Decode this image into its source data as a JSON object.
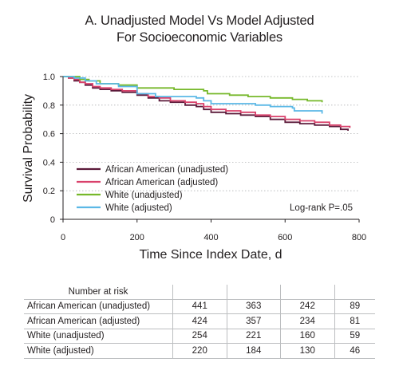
{
  "chart_data": {
    "type": "line",
    "title_line1": "A. Unadjusted Model Vs Model Adjusted",
    "title_line2": "For Socioeconomic Variables",
    "xlabel": "Time Since Index Date, d",
    "ylabel": "Survival Probability",
    "xlim": [
      0,
      800
    ],
    "ylim": [
      0,
      1.0
    ],
    "xticks": [
      "0",
      "200",
      "400",
      "600",
      "800"
    ],
    "yticks": [
      "0",
      "0.2",
      "0.4",
      "0.6",
      "0.8",
      "1.0"
    ],
    "grid": "horizontal dotted",
    "legend_position": "lower-left",
    "annotation": "Log-rank P=.05",
    "series": [
      {
        "name": "African American (unadjusted)",
        "color": "#5b1a3a",
        "points": [
          [
            0,
            1.0
          ],
          [
            15,
            0.99
          ],
          [
            30,
            0.97
          ],
          [
            45,
            0.96
          ],
          [
            60,
            0.94
          ],
          [
            80,
            0.92
          ],
          [
            100,
            0.91
          ],
          [
            130,
            0.9
          ],
          [
            160,
            0.89
          ],
          [
            200,
            0.87
          ],
          [
            230,
            0.85
          ],
          [
            260,
            0.83
          ],
          [
            290,
            0.82
          ],
          [
            330,
            0.8
          ],
          [
            360,
            0.79
          ],
          [
            380,
            0.77
          ],
          [
            400,
            0.75
          ],
          [
            440,
            0.74
          ],
          [
            480,
            0.73
          ],
          [
            520,
            0.72
          ],
          [
            560,
            0.7
          ],
          [
            600,
            0.68
          ],
          [
            640,
            0.67
          ],
          [
            680,
            0.66
          ],
          [
            720,
            0.65
          ],
          [
            750,
            0.63
          ],
          [
            770,
            0.62
          ]
        ]
      },
      {
        "name": "African American (adjusted)",
        "color": "#d9416b",
        "points": [
          [
            0,
            1.0
          ],
          [
            15,
            0.99
          ],
          [
            30,
            0.98
          ],
          [
            45,
            0.96
          ],
          [
            60,
            0.95
          ],
          [
            80,
            0.93
          ],
          [
            100,
            0.92
          ],
          [
            130,
            0.91
          ],
          [
            160,
            0.9
          ],
          [
            200,
            0.88
          ],
          [
            230,
            0.86
          ],
          [
            260,
            0.85
          ],
          [
            290,
            0.83
          ],
          [
            330,
            0.82
          ],
          [
            360,
            0.81
          ],
          [
            380,
            0.79
          ],
          [
            400,
            0.77
          ],
          [
            440,
            0.76
          ],
          [
            480,
            0.75
          ],
          [
            520,
            0.73
          ],
          [
            560,
            0.72
          ],
          [
            600,
            0.7
          ],
          [
            640,
            0.69
          ],
          [
            680,
            0.68
          ],
          [
            720,
            0.66
          ],
          [
            750,
            0.65
          ],
          [
            775,
            0.64
          ]
        ]
      },
      {
        "name": "White (unadjusted)",
        "color": "#76b82a",
        "points": [
          [
            0,
            1.0
          ],
          [
            30,
            1.0
          ],
          [
            45,
            0.98
          ],
          [
            70,
            0.97
          ],
          [
            100,
            0.95
          ],
          [
            150,
            0.94
          ],
          [
            200,
            0.92
          ],
          [
            300,
            0.91
          ],
          [
            380,
            0.9
          ],
          [
            390,
            0.88
          ],
          [
            450,
            0.87
          ],
          [
            500,
            0.86
          ],
          [
            560,
            0.85
          ],
          [
            620,
            0.84
          ],
          [
            660,
            0.83
          ],
          [
            700,
            0.82
          ]
        ]
      },
      {
        "name": "White (adjusted)",
        "color": "#5bb8e6",
        "points": [
          [
            0,
            1.0
          ],
          [
            30,
            0.99
          ],
          [
            60,
            0.97
          ],
          [
            90,
            0.95
          ],
          [
            150,
            0.93
          ],
          [
            200,
            0.88
          ],
          [
            250,
            0.86
          ],
          [
            300,
            0.86
          ],
          [
            360,
            0.85
          ],
          [
            380,
            0.83
          ],
          [
            400,
            0.81
          ],
          [
            460,
            0.81
          ],
          [
            520,
            0.8
          ],
          [
            560,
            0.79
          ],
          [
            620,
            0.78
          ],
          [
            625,
            0.76
          ],
          [
            700,
            0.74
          ]
        ]
      }
    ]
  },
  "risk_table": {
    "header": "Number at risk",
    "rows": [
      {
        "label": "African American (unadjusted)",
        "values": [
          "441",
          "363",
          "242",
          "89"
        ]
      },
      {
        "label": "African American (adjusted)",
        "values": [
          "424",
          "357",
          "234",
          "81"
        ]
      },
      {
        "label": "White (unadjusted)",
        "values": [
          "254",
          "221",
          "160",
          "59"
        ]
      },
      {
        "label": "White (adjusted)",
        "values": [
          "220",
          "184",
          "130",
          "46"
        ]
      }
    ]
  }
}
